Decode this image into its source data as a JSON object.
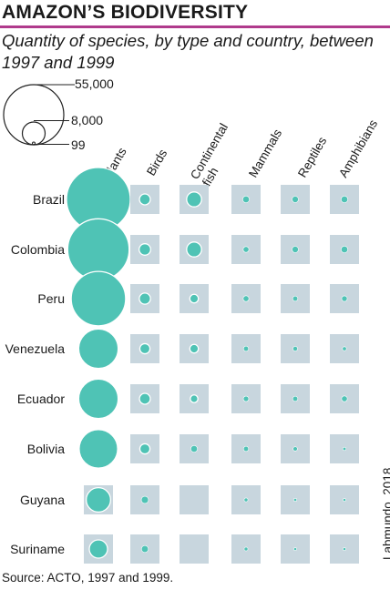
{
  "chart_data": {
    "type": "bubble-grid",
    "title": "AMAZON’S BIODIVERSITY",
    "subtitle": "Quantity of species, by type and country, between 1997 and 1999",
    "size_legend": [
      55000,
      8000,
      99
    ],
    "size_legend_labels": [
      "55,000",
      "8,000",
      "99"
    ],
    "columns": [
      "Plants",
      "Birds",
      "Continental fish",
      "Mammals",
      "Reptiles",
      "Amphibians"
    ],
    "rows": [
      "Brazil",
      "Colombia",
      "Peru",
      "Venezuela",
      "Ecuador",
      "Bolivia",
      "Guyana",
      "Suriname"
    ],
    "values": [
      [
        55000,
        1600,
        3000,
        600,
        550,
        600
      ],
      [
        51000,
        1800,
        3000,
        450,
        550,
        600
      ],
      [
        40000,
        1700,
        1000,
        450,
        350,
        420
      ],
      [
        21000,
        1400,
        1000,
        350,
        300,
        220
      ],
      [
        21000,
        1600,
        800,
        400,
        350,
        450
      ],
      [
        20000,
        1400,
        600,
        350,
        250,
        140
      ],
      [
        8000,
        700,
        0,
        200,
        130,
        100
      ],
      [
        4500,
        650,
        0,
        190,
        110,
        100
      ]
    ],
    "source": "Source: ACTO, 1997 and 1999.",
    "credit": "Labmundo, 2018",
    "colors": {
      "bubble": "#4fc3b5",
      "cell": "#c8d6de",
      "rule": "#b03a8c",
      "legend_stroke": "#222222"
    }
  }
}
